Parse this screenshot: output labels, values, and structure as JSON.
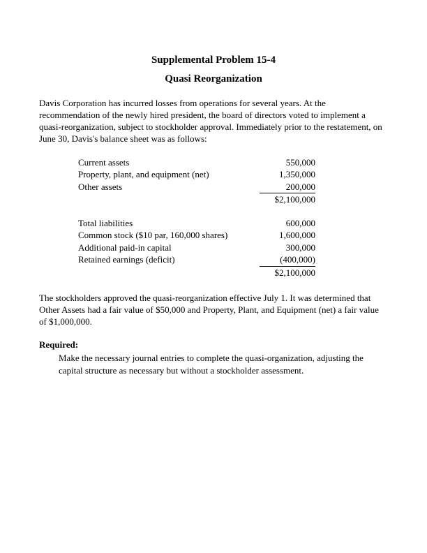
{
  "title": "Supplemental Problem 15-4",
  "subtitle": "Quasi Reorganization",
  "intro": "Davis Corporation has incurred losses from operations for several years.  At the recommendation of the newly hired president, the board of directors voted to implement a quasi-reorganization, subject to stockholder approval.  Immediately prior to the restatement, on June 30, Davis's balance sheet was as follows:",
  "assets": [
    {
      "label": "Current assets",
      "value": "550,000"
    },
    {
      "label": "Property, plant, and equipment (net)",
      "value": "1,350,000"
    },
    {
      "label": "Other assets",
      "value": "200,000"
    }
  ],
  "assets_total": "$2,100,000",
  "liab": [
    {
      "label": "Total liabilities",
      "value": "600,000"
    },
    {
      "label": "Common stock ($10 par, 160,000 shares)",
      "value": "1,600,000"
    },
    {
      "label": "Additional paid-in capital",
      "value": "300,000"
    },
    {
      "label": "Retained earnings (deficit)",
      "value": "(400,000)"
    }
  ],
  "liab_total": "$2,100,000",
  "para2": "The stockholders approved the quasi-reorganization effective July 1.  It was determined that Other Assets had a fair value of $50,000 and Property, Plant, and Equipment (net) a fair value of $1,000,000.",
  "required_head": "Required:",
  "required_body": "Make the necessary journal entries to complete the quasi-organization, adjusting the capital structure as necessary but without a stockholder assessment."
}
